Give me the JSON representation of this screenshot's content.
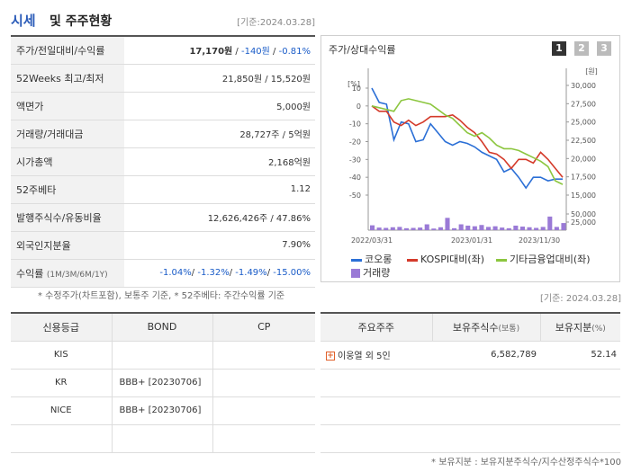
{
  "header": {
    "title_main": "시세",
    "title_rest": "및 주주현황",
    "date": "[기준:2024.03.28]"
  },
  "quote_rows": [
    {
      "label": "주가/전일대비/수익률",
      "value_parts": [
        {
          "text": "17,170원",
          "style": "bold"
        },
        {
          "text": " / ",
          "style": ""
        },
        {
          "text": "-140원",
          "style": "blue"
        },
        {
          "text": " / ",
          "style": ""
        },
        {
          "text": "-0.81%",
          "style": "blue"
        }
      ]
    },
    {
      "label": "52Weeks 최고/최저",
      "value": "21,850원 / 15,520원"
    },
    {
      "label": "액면가",
      "value": "5,000원"
    },
    {
      "label": "거래량/거래대금",
      "value": "28,727주 / 5억원"
    },
    {
      "label": "시가총액",
      "value": "2,168억원"
    },
    {
      "label": "52주베타",
      "value": "1.12"
    },
    {
      "label": "발행주식수/유동비율",
      "value": "12,626,426주 / 47.86%"
    },
    {
      "label": "외국인지분율",
      "value": "7.90%"
    },
    {
      "label": "수익률",
      "label_small": "(1M/3M/6M/1Y)",
      "value_parts": [
        {
          "text": "-1.04%",
          "style": "blue"
        },
        {
          "text": "/ ",
          "style": ""
        },
        {
          "text": "-1.32%",
          "style": "blue"
        },
        {
          "text": "/ ",
          "style": ""
        },
        {
          "text": "-1.49%",
          "style": "blue"
        },
        {
          "text": "/ ",
          "style": ""
        },
        {
          "text": "-15.00%",
          "style": "blue"
        }
      ]
    }
  ],
  "note_left": "* 수정주가(차트포함), 보통주 기준, * 52주베타: 주간수익률 기준",
  "chart_panel": {
    "title": "주가/상대수익률",
    "pages": [
      "1",
      "2",
      "3"
    ],
    "active_page": 0
  },
  "chart_data": {
    "type": "line",
    "left_unit": "[%]",
    "right_unit": "[원]",
    "left_ticks": [
      10,
      0,
      -10,
      -20,
      -30,
      -40,
      -50
    ],
    "right_ticks": [
      "30,000",
      "27,500",
      "25,000",
      "22,500",
      "20,000",
      "17,500",
      "15,000"
    ],
    "bar_ticks": [
      "50,000",
      "25,000"
    ],
    "ylim_left": [
      -50,
      10
    ],
    "ylim_right": [
      15000,
      30000
    ],
    "x_labels": [
      "2022/03/31",
      "2023/01/31",
      "2023/11/30"
    ],
    "series": [
      {
        "name": "코오롱",
        "color": "#2b6fd6",
        "values": [
          10,
          2,
          1,
          -19,
          -9,
          -10,
          -20,
          -19,
          -10,
          -15,
          -20,
          -22,
          -20,
          -21,
          -23,
          -26,
          -28,
          -30,
          -37,
          -35,
          -40,
          -46,
          -40,
          -40,
          -42,
          -41,
          -41
        ]
      },
      {
        "name": "KOSPI대비(좌)",
        "color": "#d43a2a",
        "values": [
          0,
          -3,
          -3,
          -9,
          -11,
          -8,
          -11,
          -9,
          -6,
          -6,
          -6,
          -5,
          -8,
          -12,
          -15,
          -20,
          -26,
          -27,
          -30,
          -35,
          -30,
          -30,
          -32,
          -26,
          -30,
          -35,
          -40
        ]
      },
      {
        "name": "기타금융업대비(좌)",
        "color": "#8cc63f",
        "values": [
          0,
          -1,
          -2,
          -3,
          3,
          4,
          3,
          2,
          1,
          -2,
          -5,
          -7,
          -11,
          -15,
          -17,
          -15,
          -18,
          -22,
          -24,
          -24,
          -25,
          -27,
          -29,
          -31,
          -34,
          -42,
          -44
        ]
      }
    ],
    "volume": {
      "name": "거래량",
      "color": "#9a7ad6",
      "values": [
        15,
        8,
        7,
        9,
        10,
        6,
        7,
        8,
        18,
        5,
        9,
        38,
        6,
        18,
        14,
        12,
        16,
        10,
        12,
        8,
        6,
        14,
        11,
        9,
        7,
        10,
        42,
        10,
        22
      ]
    }
  },
  "date2": "[기준: 2024.03.28]",
  "credit_table": {
    "headers": [
      "신용등급",
      "BOND",
      "CP"
    ],
    "rows": [
      [
        "KIS",
        "",
        ""
      ],
      [
        "KR",
        "BBB+ [20230706]",
        ""
      ],
      [
        "NICE",
        "BBB+ [20230706]",
        ""
      ],
      [
        "",
        "",
        ""
      ]
    ]
  },
  "holder_table": {
    "headers": [
      "주요주주",
      "보유주식수",
      "(보통)",
      "보유지분",
      "(%)"
    ],
    "rows": [
      [
        "이웅열 외 5인",
        "6,582,789",
        "52.14"
      ],
      [
        "",
        "",
        ""
      ],
      [
        "",
        "",
        ""
      ],
      [
        "",
        "",
        ""
      ]
    ]
  },
  "note_right": "* 보유지분 : 보유지분주식수/지수산정주식수*100",
  "icons": {
    "expand": "plus-box-icon"
  }
}
